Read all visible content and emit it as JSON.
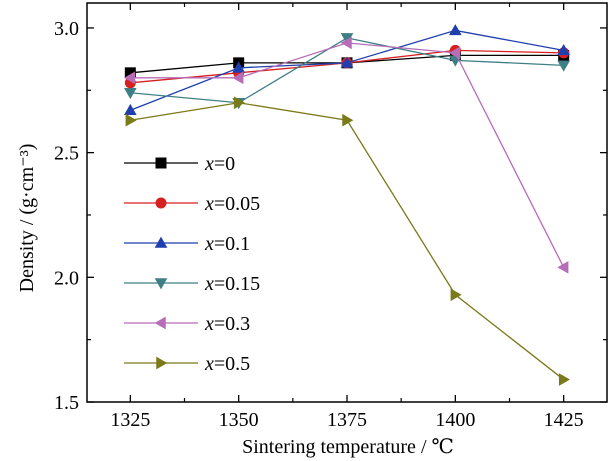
{
  "chart_data": {
    "type": "line",
    "title": "",
    "xlabel": "Sintering  temperature / ℃",
    "ylabel": "Density / (g·cm⁻³)",
    "x": [
      1325,
      1350,
      1375,
      1400,
      1425
    ],
    "xlim": [
      1315,
      1435
    ],
    "ylim": [
      1.5,
      3.1
    ],
    "xticks": [
      "1325",
      "1350",
      "1375",
      "1400",
      "1425"
    ],
    "yticks": [
      "1.5",
      "2.0",
      "2.5",
      "3.0"
    ],
    "grid": false,
    "legend_position": "left",
    "series": [
      {
        "name": "x=0",
        "var": "x",
        "rest": "=0",
        "marker": "square",
        "color": "#000000",
        "values": [
          2.82,
          2.86,
          2.86,
          2.89,
          2.89
        ]
      },
      {
        "name": "x=0.05",
        "var": "x",
        "rest": "=0.05",
        "marker": "circle",
        "color": "#d62020",
        "values": [
          2.78,
          2.82,
          2.86,
          2.91,
          2.9
        ]
      },
      {
        "name": "x=0.1",
        "var": "x",
        "rest": "=0.1",
        "marker": "triangle-up",
        "color": "#1f3fae",
        "values": [
          2.67,
          2.84,
          2.86,
          2.99,
          2.91
        ]
      },
      {
        "name": "x=0.15",
        "var": "x",
        "rest": "=0.15",
        "marker": "triangle-down",
        "color": "#3e7f86",
        "values": [
          2.74,
          2.7,
          2.96,
          2.87,
          2.85
        ]
      },
      {
        "name": "x=0.3",
        "var": "x",
        "rest": "=0.3",
        "marker": "triangle-left",
        "color": "#b66cb6",
        "values": [
          2.8,
          2.8,
          2.94,
          2.9,
          2.04
        ]
      },
      {
        "name": "x=0.5",
        "var": "x",
        "rest": "=0.5",
        "marker": "triangle-right",
        "color": "#7a7a1a",
        "values": [
          2.63,
          2.7,
          2.63,
          1.93,
          1.59
        ]
      }
    ]
  }
}
